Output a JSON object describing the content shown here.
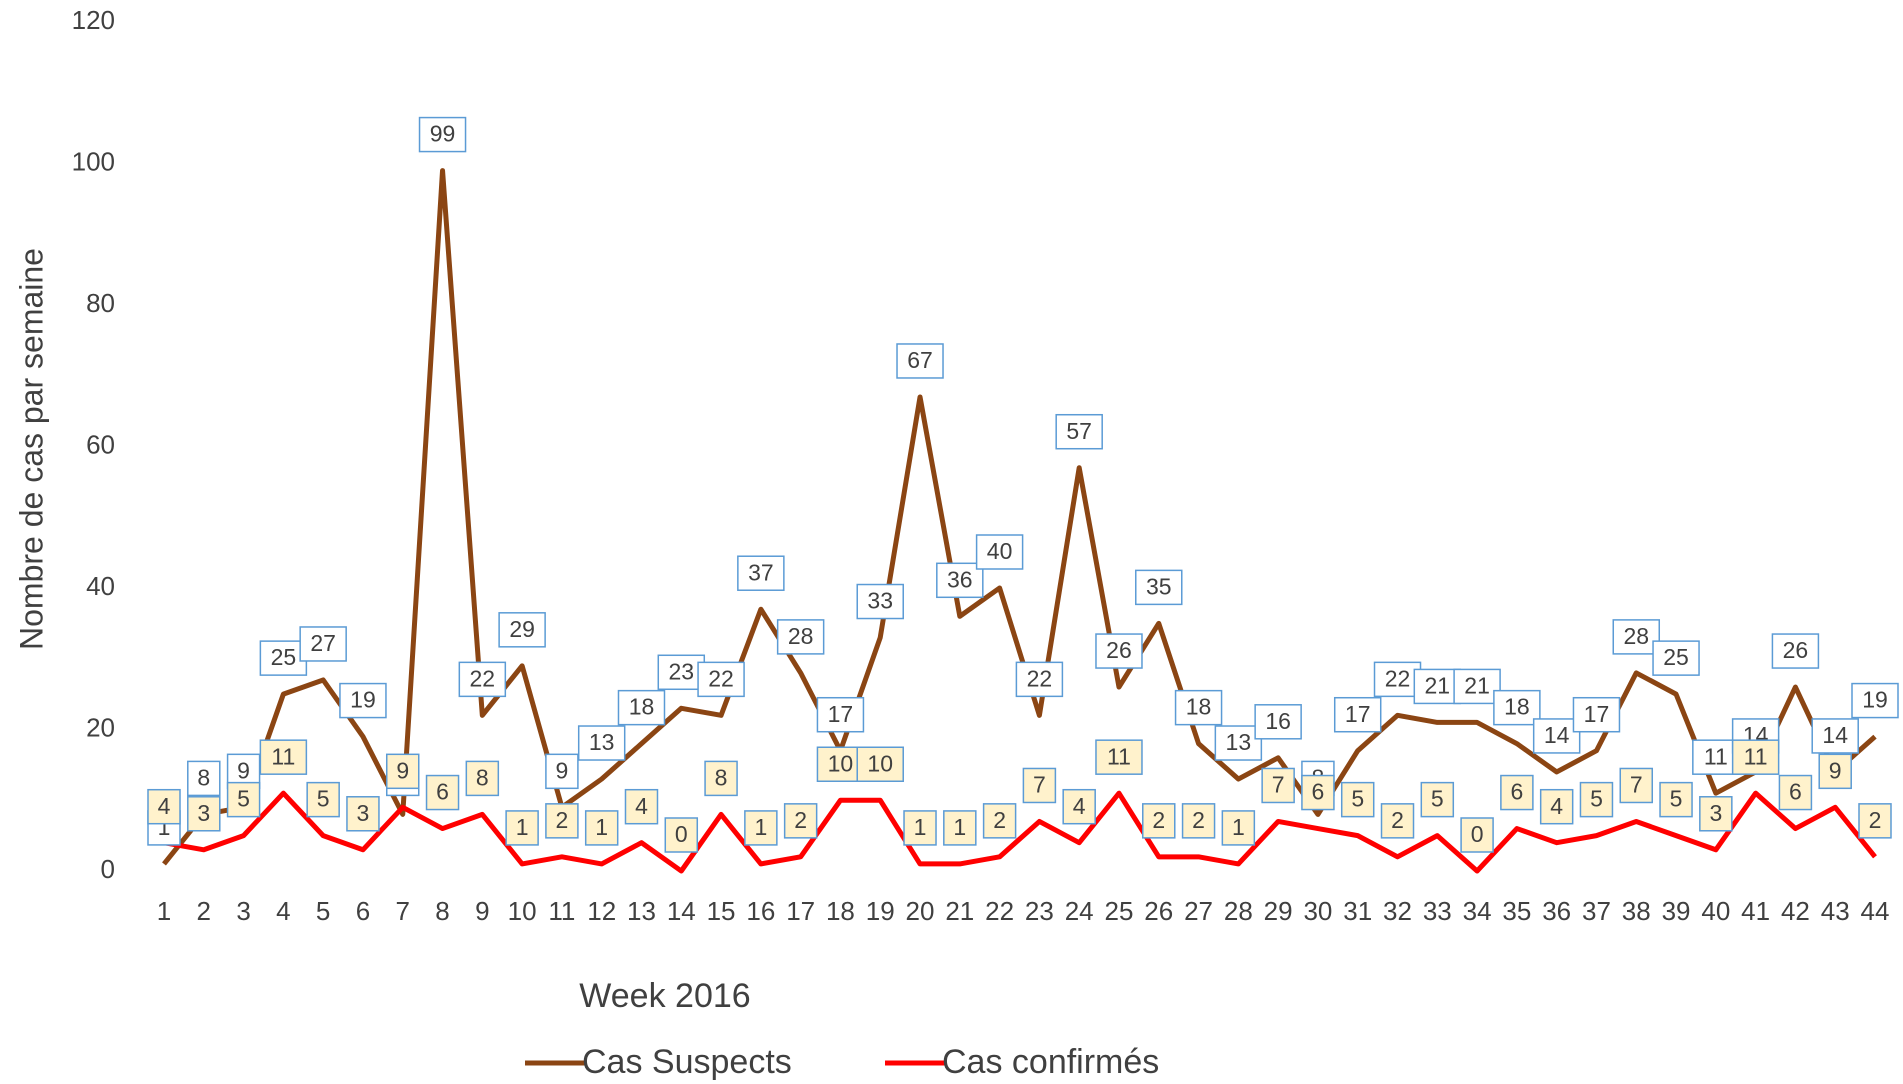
{
  "chart_data": {
    "type": "line",
    "x_label": "Week 2016",
    "y_label": "Nombre de cas par semaine",
    "categories": [
      "1",
      "2",
      "3",
      "4",
      "5",
      "6",
      "7",
      "8",
      "9",
      "10",
      "11",
      "12",
      "13",
      "14",
      "15",
      "16",
      "17",
      "18",
      "19",
      "20",
      "21",
      "22",
      "23",
      "24",
      "25",
      "26",
      "27",
      "28",
      "29",
      "30",
      "31",
      "32",
      "33",
      "34",
      "35",
      "36",
      "37",
      "38",
      "39",
      "40",
      "41",
      "42",
      "43",
      "44"
    ],
    "series": [
      {
        "name": "Cas Suspects",
        "color": "#8b4513",
        "label_border": "#5b9bd5",
        "label_fill": "#ffffff",
        "values": [
          1,
          8,
          9,
          25,
          27,
          19,
          8,
          99,
          22,
          29,
          9,
          13,
          18,
          23,
          22,
          37,
          28,
          17,
          33,
          67,
          36,
          40,
          22,
          57,
          26,
          35,
          18,
          13,
          16,
          8,
          17,
          22,
          21,
          21,
          18,
          14,
          17,
          28,
          25,
          11,
          14,
          26,
          14,
          19
        ]
      },
      {
        "name": "Cas confirmés",
        "color": "#ff0000",
        "label_border": "#5b9bd5",
        "label_fill": "#fff2cc",
        "values": [
          4,
          3,
          5,
          11,
          5,
          3,
          9,
          6,
          8,
          1,
          2,
          1,
          4,
          0,
          8,
          1,
          2,
          10,
          10,
          1,
          1,
          2,
          7,
          4,
          11,
          2,
          2,
          1,
          7,
          6,
          5,
          2,
          5,
          0,
          6,
          4,
          5,
          7,
          5,
          3,
          11,
          6,
          9,
          2
        ]
      }
    ],
    "ylim": [
      0,
      120
    ],
    "yticks": [
      0,
      20,
      40,
      60,
      80,
      100,
      120
    ],
    "grid": false,
    "legend": "bottom"
  }
}
